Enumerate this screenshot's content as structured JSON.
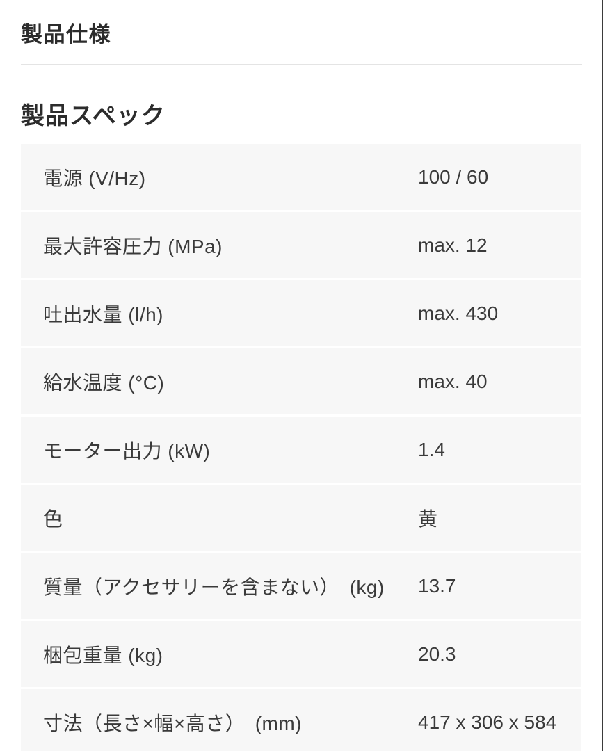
{
  "page": {
    "title": "製品仕様",
    "section_title": "製品スペック"
  },
  "spec_table": {
    "rows": [
      {
        "label": "電源 (V/Hz)",
        "value": "100 / 60"
      },
      {
        "label": "最大許容圧力 (MPa)",
        "value": "max. 12"
      },
      {
        "label": "吐出水量 (l/h)",
        "value": "max. 430"
      },
      {
        "label": "給水温度 (°C)",
        "value": "max. 40"
      },
      {
        "label": "モーター出力 (kW)",
        "value": "1.4"
      },
      {
        "label": "色",
        "value": "黄"
      },
      {
        "label": "質量（アクセサリーを含まない）　(kg)",
        "value": "13.7"
      },
      {
        "label": "梱包重量 (kg)",
        "value": "20.3"
      },
      {
        "label": "寸法（長さ×幅×高さ）　(mm)",
        "value": "417 x 306 x 584"
      }
    ]
  },
  "colors": {
    "row_background": "#f7f7f7",
    "body_text": "#3a3a3a",
    "heading_text": "#2c2c2c",
    "divider": "#e4e4e4",
    "right_edge_border": "#3b3b3b"
  }
}
